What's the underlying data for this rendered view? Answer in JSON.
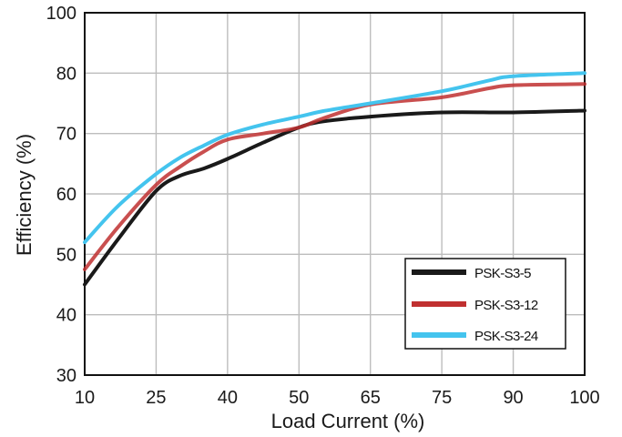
{
  "chart_data": {
    "type": "line",
    "title": "",
    "xlabel": "Load Current (%)",
    "ylabel": "Efficiency (%)",
    "x_ticks": [
      "10",
      "25",
      "40",
      "50",
      "65",
      "75",
      "90",
      "100"
    ],
    "y_ticks": [
      "30",
      "40",
      "50",
      "60",
      "70",
      "80",
      "100"
    ],
    "ylim": [
      30,
      100
    ],
    "grid": true,
    "legend_position": "bottom-right",
    "series": [
      {
        "name": "PSK-S3-5",
        "color": "#1a1a1a",
        "points": [
          [
            10,
            45.0
          ],
          [
            17,
            52.5
          ],
          [
            25,
            60.5
          ],
          [
            30,
            63.0
          ],
          [
            35,
            64.2
          ],
          [
            40,
            65.8
          ],
          [
            45,
            68.5
          ],
          [
            50,
            71.0
          ],
          [
            55,
            72.0
          ],
          [
            65,
            72.8
          ],
          [
            75,
            73.5
          ],
          [
            90,
            73.5
          ],
          [
            100,
            73.8
          ]
        ]
      },
      {
        "name": "PSK-S3-12",
        "color": "#c03030",
        "points": [
          [
            10,
            47.5
          ],
          [
            17,
            54.5
          ],
          [
            25,
            61.5
          ],
          [
            30,
            64.5
          ],
          [
            35,
            67.0
          ],
          [
            40,
            69.0
          ],
          [
            45,
            70.0
          ],
          [
            50,
            71.0
          ],
          [
            55,
            72.5
          ],
          [
            65,
            74.8
          ],
          [
            75,
            76.0
          ],
          [
            85,
            77.5
          ],
          [
            90,
            78.0
          ],
          [
            100,
            78.2
          ]
        ]
      },
      {
        "name": "PSK-S3-24",
        "color": "#44c4ee",
        "points": [
          [
            10,
            52.0
          ],
          [
            17,
            58.0
          ],
          [
            25,
            63.3
          ],
          [
            30,
            66.0
          ],
          [
            35,
            68.0
          ],
          [
            40,
            69.8
          ],
          [
            45,
            71.5
          ],
          [
            50,
            72.8
          ],
          [
            55,
            73.7
          ],
          [
            65,
            75.0
          ],
          [
            75,
            77.0
          ],
          [
            85,
            78.8
          ],
          [
            90,
            79.5
          ],
          [
            100,
            80.0
          ]
        ]
      }
    ]
  }
}
